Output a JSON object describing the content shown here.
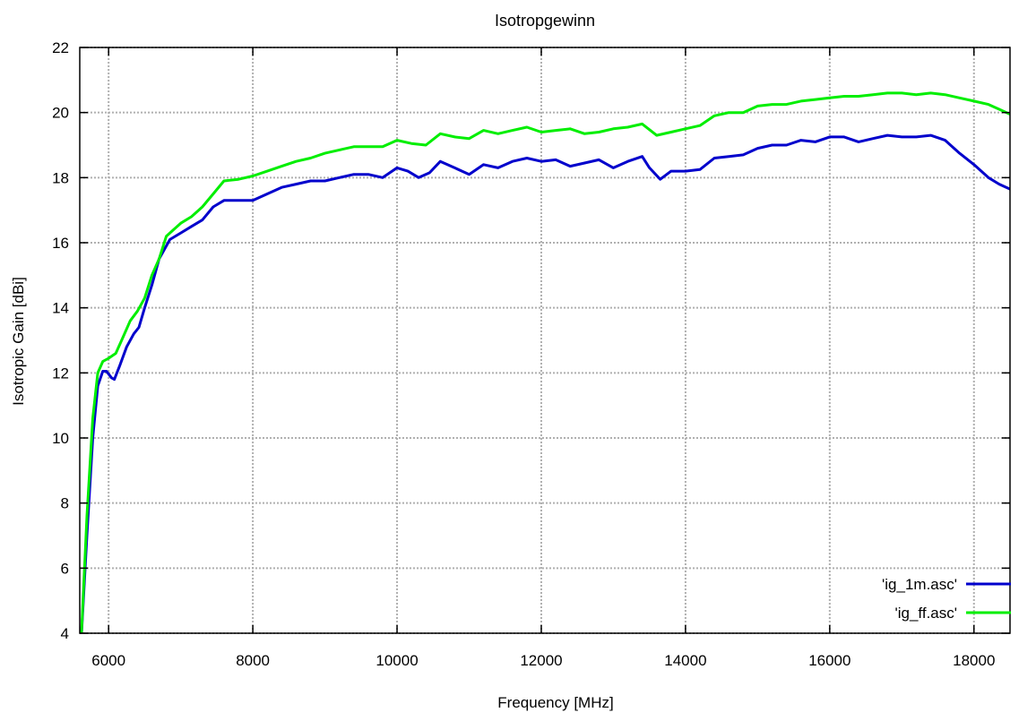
{
  "chart_data": {
    "type": "line",
    "title": "Isotropgewinn",
    "xlabel": "Frequency [MHz]",
    "ylabel": "Isotropic Gain [dBi]",
    "xlim": [
      5600,
      18500
    ],
    "ylim": [
      4,
      22
    ],
    "xticks": [
      6000,
      8000,
      10000,
      12000,
      14000,
      16000,
      18000
    ],
    "yticks": [
      4,
      6,
      8,
      10,
      12,
      14,
      16,
      18,
      20,
      22
    ],
    "grid": true,
    "legend_position": "bottom-right",
    "series": [
      {
        "name": "'ig_1m.asc'",
        "color": "#0000cc",
        "points": [
          [
            5620,
            3.8
          ],
          [
            5700,
            7.0
          ],
          [
            5780,
            10.0
          ],
          [
            5850,
            11.6
          ],
          [
            5920,
            12.05
          ],
          [
            5970,
            12.05
          ],
          [
            6040,
            11.85
          ],
          [
            6080,
            11.8
          ],
          [
            6150,
            12.2
          ],
          [
            6250,
            12.8
          ],
          [
            6350,
            13.2
          ],
          [
            6420,
            13.4
          ],
          [
            6500,
            14.0
          ],
          [
            6600,
            14.7
          ],
          [
            6700,
            15.5
          ],
          [
            6850,
            16.1
          ],
          [
            7000,
            16.3
          ],
          [
            7150,
            16.5
          ],
          [
            7300,
            16.7
          ],
          [
            7450,
            17.1
          ],
          [
            7600,
            17.3
          ],
          [
            7800,
            17.3
          ],
          [
            8000,
            17.3
          ],
          [
            8200,
            17.5
          ],
          [
            8400,
            17.7
          ],
          [
            8600,
            17.8
          ],
          [
            8800,
            17.9
          ],
          [
            9000,
            17.9
          ],
          [
            9200,
            18.0
          ],
          [
            9400,
            18.1
          ],
          [
            9600,
            18.1
          ],
          [
            9800,
            18.0
          ],
          [
            10000,
            18.3
          ],
          [
            10150,
            18.2
          ],
          [
            10300,
            18.0
          ],
          [
            10450,
            18.15
          ],
          [
            10600,
            18.5
          ],
          [
            10800,
            18.3
          ],
          [
            11000,
            18.1
          ],
          [
            11200,
            18.4
          ],
          [
            11400,
            18.3
          ],
          [
            11600,
            18.5
          ],
          [
            11800,
            18.6
          ],
          [
            12000,
            18.5
          ],
          [
            12200,
            18.55
          ],
          [
            12400,
            18.35
          ],
          [
            12600,
            18.45
          ],
          [
            12800,
            18.55
          ],
          [
            13000,
            18.3
          ],
          [
            13200,
            18.5
          ],
          [
            13400,
            18.65
          ],
          [
            13500,
            18.3
          ],
          [
            13650,
            17.95
          ],
          [
            13800,
            18.2
          ],
          [
            14000,
            18.2
          ],
          [
            14200,
            18.25
          ],
          [
            14400,
            18.6
          ],
          [
            14600,
            18.65
          ],
          [
            14800,
            18.7
          ],
          [
            15000,
            18.9
          ],
          [
            15200,
            19.0
          ],
          [
            15400,
            19.0
          ],
          [
            15600,
            19.15
          ],
          [
            15800,
            19.1
          ],
          [
            16000,
            19.25
          ],
          [
            16200,
            19.25
          ],
          [
            16400,
            19.1
          ],
          [
            16600,
            19.2
          ],
          [
            16800,
            19.3
          ],
          [
            17000,
            19.25
          ],
          [
            17200,
            19.25
          ],
          [
            17400,
            19.3
          ],
          [
            17600,
            19.15
          ],
          [
            17800,
            18.75
          ],
          [
            18000,
            18.4
          ],
          [
            18200,
            18.0
          ],
          [
            18350,
            17.8
          ],
          [
            18500,
            17.65
          ]
        ]
      },
      {
        "name": "'ig_ff.asc'",
        "color": "#00ee00",
        "points": [
          [
            5620,
            3.8
          ],
          [
            5700,
            7.6
          ],
          [
            5780,
            10.6
          ],
          [
            5850,
            12.0
          ],
          [
            5920,
            12.35
          ],
          [
            6000,
            12.45
          ],
          [
            6100,
            12.6
          ],
          [
            6200,
            13.1
          ],
          [
            6300,
            13.6
          ],
          [
            6400,
            13.9
          ],
          [
            6500,
            14.3
          ],
          [
            6600,
            15.0
          ],
          [
            6700,
            15.5
          ],
          [
            6800,
            16.2
          ],
          [
            6900,
            16.4
          ],
          [
            7000,
            16.6
          ],
          [
            7150,
            16.8
          ],
          [
            7300,
            17.1
          ],
          [
            7450,
            17.5
          ],
          [
            7600,
            17.9
          ],
          [
            7800,
            17.95
          ],
          [
            8000,
            18.05
          ],
          [
            8200,
            18.2
          ],
          [
            8400,
            18.35
          ],
          [
            8600,
            18.5
          ],
          [
            8800,
            18.6
          ],
          [
            9000,
            18.75
          ],
          [
            9200,
            18.85
          ],
          [
            9400,
            18.95
          ],
          [
            9600,
            18.95
          ],
          [
            9800,
            18.95
          ],
          [
            10000,
            19.15
          ],
          [
            10200,
            19.05
          ],
          [
            10400,
            19.0
          ],
          [
            10600,
            19.35
          ],
          [
            10800,
            19.25
          ],
          [
            11000,
            19.2
          ],
          [
            11200,
            19.45
          ],
          [
            11400,
            19.35
          ],
          [
            11600,
            19.45
          ],
          [
            11800,
            19.55
          ],
          [
            12000,
            19.4
          ],
          [
            12200,
            19.45
          ],
          [
            12400,
            19.5
          ],
          [
            12600,
            19.35
          ],
          [
            12800,
            19.4
          ],
          [
            13000,
            19.5
          ],
          [
            13200,
            19.55
          ],
          [
            13400,
            19.65
          ],
          [
            13600,
            19.3
          ],
          [
            13800,
            19.4
          ],
          [
            14000,
            19.5
          ],
          [
            14200,
            19.6
          ],
          [
            14400,
            19.9
          ],
          [
            14600,
            20.0
          ],
          [
            14800,
            20.0
          ],
          [
            15000,
            20.2
          ],
          [
            15200,
            20.25
          ],
          [
            15400,
            20.25
          ],
          [
            15600,
            20.35
          ],
          [
            15800,
            20.4
          ],
          [
            16000,
            20.45
          ],
          [
            16200,
            20.5
          ],
          [
            16400,
            20.5
          ],
          [
            16600,
            20.55
          ],
          [
            16800,
            20.6
          ],
          [
            17000,
            20.6
          ],
          [
            17200,
            20.55
          ],
          [
            17400,
            20.6
          ],
          [
            17600,
            20.55
          ],
          [
            17800,
            20.45
          ],
          [
            18000,
            20.35
          ],
          [
            18200,
            20.25
          ],
          [
            18350,
            20.1
          ],
          [
            18500,
            19.95
          ]
        ]
      }
    ]
  }
}
